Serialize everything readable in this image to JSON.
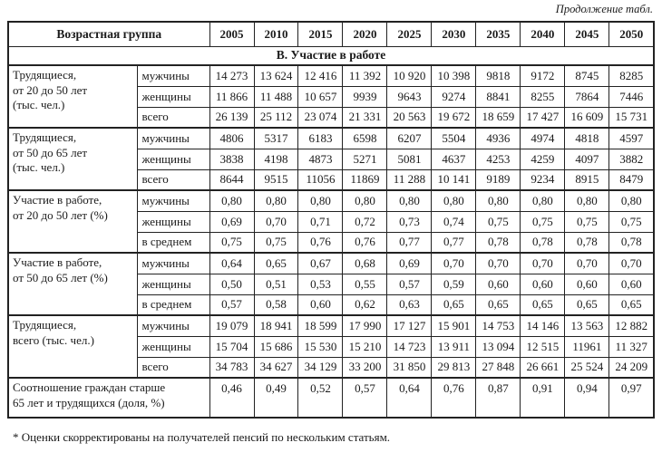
{
  "page": {
    "continuation_note": "Продолжение табл.",
    "footnote": "* Оценки скорректированы на получателей пенсий по нескольким статьям."
  },
  "table": {
    "header": {
      "group_column_label": "Возрастная группа",
      "years": [
        "2005",
        "2010",
        "2015",
        "2020",
        "2025",
        "2030",
        "2035",
        "2040",
        "2045",
        "2050"
      ]
    },
    "section_title": "В. Участие в работе",
    "groups": [
      {
        "label_lines": [
          "Трудящиеся,",
          "от 20 до 50 лет",
          "(тыс. чел.)"
        ],
        "rows": [
          {
            "label": "мужчины",
            "values": [
              "14 273",
              "13 624",
              "12 416",
              "11 392",
              "10 920",
              "10 398",
              "9818",
              "9172",
              "8745",
              "8285"
            ]
          },
          {
            "label": "женщины",
            "values": [
              "11 866",
              "11 488",
              "10 657",
              "9939",
              "9643",
              "9274",
              "8841",
              "8255",
              "7864",
              "7446"
            ]
          },
          {
            "label": "всего",
            "values": [
              "26 139",
              "25 112",
              "23 074",
              "21 331",
              "20 563",
              "19 672",
              "18 659",
              "17 427",
              "16 609",
              "15 731"
            ]
          }
        ]
      },
      {
        "label_lines": [
          "Трудящиеся,",
          "от 50 до 65 лет",
          "(тыс. чел.)"
        ],
        "rows": [
          {
            "label": "мужчины",
            "values": [
              "4806",
              "5317",
              "6183",
              "6598",
              "6207",
              "5504",
              "4936",
              "4974",
              "4818",
              "4597"
            ]
          },
          {
            "label": "женщины",
            "values": [
              "3838",
              "4198",
              "4873",
              "5271",
              "5081",
              "4637",
              "4253",
              "4259",
              "4097",
              "3882"
            ]
          },
          {
            "label": "всего",
            "values": [
              "8644",
              "9515",
              "11056",
              "11869",
              "11 288",
              "10 141",
              "9189",
              "9234",
              "8915",
              "8479"
            ]
          }
        ]
      },
      {
        "label_lines": [
          "Участие в работе,",
          "от 20 до 50 лет (%)"
        ],
        "rows": [
          {
            "label": "мужчины",
            "values": [
              "0,80",
              "0,80",
              "0,80",
              "0,80",
              "0,80",
              "0,80",
              "0,80",
              "0,80",
              "0,80",
              "0,80"
            ]
          },
          {
            "label": "женщины",
            "values": [
              "0,69",
              "0,70",
              "0,71",
              "0,72",
              "0,73",
              "0,74",
              "0,75",
              "0,75",
              "0,75",
              "0,75"
            ]
          },
          {
            "label": "в среднем",
            "values": [
              "0,75",
              "0,75",
              "0,76",
              "0,76",
              "0,77",
              "0,77",
              "0,78",
              "0,78",
              "0,78",
              "0,78"
            ]
          }
        ]
      },
      {
        "label_lines": [
          "Участие в работе,",
          "от 50 до 65 лет (%)"
        ],
        "rows": [
          {
            "label": "мужчины",
            "values": [
              "0,64",
              "0,65",
              "0,67",
              "0,68",
              "0,69",
              "0,70",
              "0,70",
              "0,70",
              "0,70",
              "0,70"
            ]
          },
          {
            "label": "женщины",
            "values": [
              "0,50",
              "0,51",
              "0,53",
              "0,55",
              "0,57",
              "0,59",
              "0,60",
              "0,60",
              "0,60",
              "0,60"
            ]
          },
          {
            "label": "в среднем",
            "values": [
              "0,57",
              "0,58",
              "0,60",
              "0,62",
              "0,63",
              "0,65",
              "0,65",
              "0,65",
              "0,65",
              "0,65"
            ]
          }
        ]
      },
      {
        "label_lines": [
          "Трудящиеся,",
          "всего (тыс. чел.)"
        ],
        "rows": [
          {
            "label": "мужчины",
            "values": [
              "19 079",
              "18 941",
              "18 599",
              "17 990",
              "17 127",
              "15 901",
              "14 753",
              "14 146",
              "13 563",
              "12 882"
            ]
          },
          {
            "label": "женщины",
            "values": [
              "15 704",
              "15 686",
              "15 530",
              "15 210",
              "14 723",
              "13 911",
              "13 094",
              "12 515",
              "11961",
              "11 327"
            ]
          },
          {
            "label": "всего",
            "values": [
              "34 783",
              "34 627",
              "34 129",
              "33 200",
              "31 850",
              "29 813",
              "27 848",
              "26 661",
              "25 524",
              "24 209"
            ]
          }
        ]
      }
    ],
    "summary_row": {
      "label_lines": [
        "Соотношение граждан старше",
        "65 лет и трудящихся (доля, %)"
      ],
      "values": [
        "0,46",
        "0,49",
        "0,52",
        "0,57",
        "0,64",
        "0,76",
        "0,87",
        "0,91",
        "0,94",
        "0,97"
      ]
    }
  }
}
